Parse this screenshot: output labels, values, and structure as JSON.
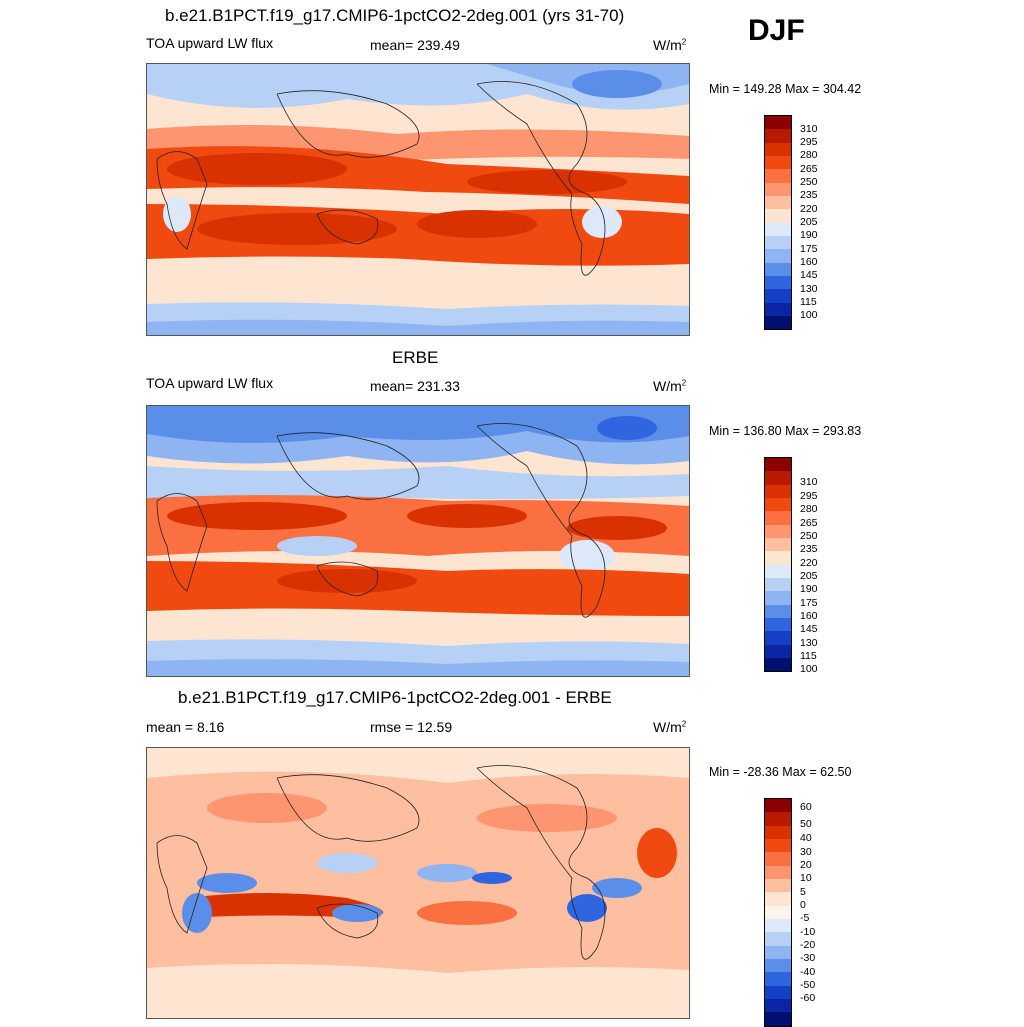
{
  "season": "DJF",
  "panels": [
    {
      "title": "b.e21.B1PCT.f19_g17.CMIP6-1pctCO2-2deg.001 (yrs 31-70)",
      "left_label": "TOA upward LW flux",
      "center_label": "mean= 239.49",
      "units": "W/m",
      "units_sup": "2",
      "minmax": "Min = 149.28 Max = 304.42",
      "colorbar": {
        "colors": [
          "#8b0000",
          "#b81a00",
          "#d93100",
          "#f04a10",
          "#fa7040",
          "#fd9570",
          "#fdbfa0",
          "#fde5d2",
          "#dde9f8",
          "#b7d0f5",
          "#8eb4f1",
          "#5b8ee8",
          "#2f66e0",
          "#1440c8",
          "#0a26a5",
          "#001070"
        ],
        "labels": [
          "310",
          "295",
          "280",
          "265",
          "250",
          "235",
          "220",
          "205",
          "190",
          "175",
          "160",
          "145",
          "130",
          "115",
          "100"
        ]
      }
    },
    {
      "title": "ERBE",
      "left_label": "TOA upward LW flux",
      "center_label": "mean= 231.33",
      "units": "W/m",
      "units_sup": "2",
      "minmax": "Min = 136.80 Max = 293.83",
      "colorbar": {
        "colors": [
          "#8b0000",
          "#b81a00",
          "#d93100",
          "#f04a10",
          "#fa7040",
          "#fd9570",
          "#fdbfa0",
          "#fde5d2",
          "#dde9f8",
          "#b7d0f5",
          "#8eb4f1",
          "#5b8ee8",
          "#2f66e0",
          "#1440c8",
          "#0a26a5",
          "#001070"
        ],
        "labels": [
          "310",
          "295",
          "280",
          "265",
          "250",
          "235",
          "220",
          "205",
          "190",
          "175",
          "160",
          "145",
          "130",
          "115",
          "100"
        ]
      }
    },
    {
      "title": "b.e21.B1PCT.f19_g17.CMIP6-1pctCO2-2deg.001 - ERBE",
      "left_label": "mean =   8.16",
      "center_label": "rmse =  12.59",
      "units": "W/m",
      "units_sup": "2",
      "minmax": "Min = -28.36 Max =  62.50",
      "colorbar": {
        "colors": [
          "#8b0000",
          "#b81a00",
          "#d93100",
          "#f04a10",
          "#fa7040",
          "#fd9570",
          "#fdbfa0",
          "#fde5d2",
          "#fdf5ec",
          "#dde9f8",
          "#b7d0f5",
          "#8eb4f1",
          "#5b8ee8",
          "#2f66e0",
          "#1440c8",
          "#0a26a5",
          "#001070"
        ],
        "labels": [
          "60",
          "50",
          "40",
          "30",
          "20",
          "10",
          "5",
          "0",
          "-5",
          "-10",
          "-20",
          "-30",
          "-40",
          "-50",
          "-60"
        ]
      }
    }
  ],
  "chart_data": {
    "type": "heatmap",
    "panels": [
      {
        "name": "b.e21.B1PCT.f19_g17.CMIP6-1pctCO2-2deg.001 (yrs 31-70)",
        "mean": 239.49,
        "min": 149.28,
        "max": 304.42,
        "units": "W/m2",
        "levels": [
          100,
          115,
          130,
          145,
          160,
          175,
          190,
          205,
          220,
          235,
          250,
          265,
          280,
          295,
          310
        ]
      },
      {
        "name": "ERBE",
        "mean": 231.33,
        "min": 136.8,
        "max": 293.83,
        "units": "W/m2",
        "levels": [
          100,
          115,
          130,
          145,
          160,
          175,
          190,
          205,
          220,
          235,
          250,
          265,
          280,
          295,
          310
        ]
      },
      {
        "name": "b.e21.B1PCT.f19_g17.CMIP6-1pctCO2-2deg.001 - ERBE",
        "mean": 8.16,
        "rmse": 12.59,
        "min": -28.36,
        "max": 62.5,
        "units": "W/m2",
        "levels": [
          -60,
          -50,
          -40,
          -30,
          -20,
          -10,
          -5,
          0,
          5,
          10,
          20,
          30,
          40,
          50,
          60
        ]
      }
    ]
  }
}
